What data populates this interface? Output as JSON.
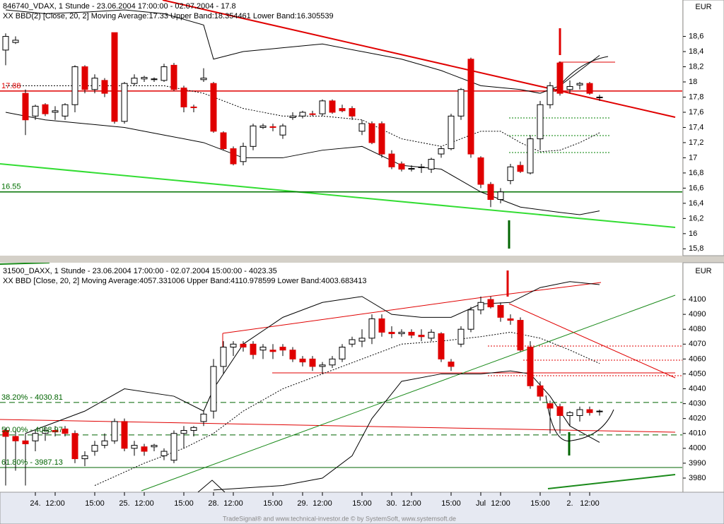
{
  "chart_data": [
    {
      "type": "candlestick",
      "title": "846740_VDAX, 1 Stunde - 23.06.2004 17:00:00 - 02.07.2004 - 17.8",
      "subtitle": "XX BBD(2) [Close, 20, 2] Moving Average:17.33 Upper Band:18.354461 Lower Band:16.305539",
      "axis_unit": "EUR",
      "open": [
        18.42,
        18.52,
        17.85,
        17.55,
        17.7,
        17.6,
        17.55,
        17.7,
        18.2,
        17.9,
        18.02,
        18.65,
        17.48,
        17.98,
        18.04,
        18.03,
        18.02,
        18.22,
        17.92,
        17.67,
        18.03,
        17.98,
        17.33,
        17.12,
        16.95,
        17.15,
        17.4,
        17.41,
        17.3,
        17.53,
        17.55,
        17.58,
        17.58,
        17.75,
        17.65,
        17.65,
        17.35,
        17.45,
        17.45,
        17.05,
        16.92,
        16.85,
        16.87,
        16.85,
        17.05,
        17.12,
        17.55,
        18.3,
        17.0,
        16.65,
        16.45,
        16.7,
        16.9,
        16.8,
        17.25,
        17.7,
        18.25,
        17.9,
        17.96,
        17.98,
        17.8
      ],
      "high": [
        18.64,
        18.6,
        17.9,
        17.7,
        17.72,
        17.68,
        17.72,
        18.22,
        18.22,
        18.1,
        18.05,
        18.65,
        18.0,
        18.1,
        18.08,
        18.06,
        18.24,
        18.25,
        17.95,
        17.7,
        18.18,
        18.0,
        17.35,
        17.15,
        17.2,
        17.45,
        17.45,
        17.45,
        17.45,
        17.6,
        17.62,
        17.62,
        17.77,
        17.77,
        17.7,
        17.68,
        17.5,
        17.48,
        17.48,
        17.1,
        16.95,
        16.9,
        16.92,
        17.0,
        17.15,
        17.58,
        17.92,
        18.32,
        17.02,
        16.68,
        16.6,
        16.92,
        16.95,
        17.3,
        17.75,
        18.0,
        18.27,
        18.02,
        18.0,
        18.0,
        17.83
      ],
      "low": [
        18.22,
        18.5,
        17.3,
        17.5,
        17.55,
        17.5,
        17.5,
        17.6,
        17.85,
        17.85,
        17.8,
        17.45,
        17.45,
        17.95,
        18.0,
        18.0,
        18.0,
        17.88,
        17.6,
        17.6,
        18.0,
        17.33,
        17.1,
        16.9,
        16.9,
        17.1,
        17.38,
        17.35,
        17.25,
        17.5,
        17.52,
        17.55,
        17.55,
        17.58,
        17.6,
        17.5,
        17.3,
        17.18,
        17.0,
        16.85,
        16.82,
        16.82,
        16.8,
        16.8,
        17.0,
        17.1,
        17.5,
        17.0,
        16.6,
        16.35,
        16.4,
        16.65,
        16.8,
        16.78,
        17.1,
        17.65,
        17.82,
        17.85,
        17.9,
        17.83,
        17.75
      ],
      "close": [
        18.6,
        18.55,
        17.5,
        17.68,
        17.58,
        17.62,
        17.7,
        18.2,
        17.9,
        18.05,
        17.85,
        17.48,
        17.98,
        18.05,
        18.06,
        18.04,
        18.2,
        17.9,
        17.67,
        17.66,
        18.05,
        17.35,
        17.12,
        16.92,
        17.15,
        17.42,
        17.42,
        17.4,
        17.42,
        17.55,
        17.6,
        17.57,
        17.75,
        17.6,
        17.62,
        17.55,
        17.45,
        17.2,
        17.05,
        16.88,
        16.85,
        16.86,
        16.88,
        16.98,
        17.12,
        17.55,
        17.9,
        17.05,
        16.65,
        16.45,
        16.55,
        16.88,
        16.82,
        17.25,
        17.7,
        17.95,
        17.85,
        17.94,
        17.98,
        17.85,
        17.8
      ],
      "up_color": "#ffffff",
      "down_color": "#e00000",
      "series": [
        {
          "color": "#000000",
          "style": "solid",
          "x": [
            0,
            4,
            8,
            12,
            16,
            20,
            21,
            24,
            28,
            32,
            36,
            40,
            44,
            48,
            52,
            54,
            56,
            58,
            60
          ],
          "values": [
            18.95,
            18.9,
            18.92,
            18.95,
            18.9,
            18.75,
            18.3,
            18.4,
            18.45,
            18.5,
            18.4,
            18.3,
            18.15,
            17.95,
            17.9,
            17.85,
            17.95,
            18.15,
            18.35
          ]
        },
        {
          "color": "#000000",
          "style": "dotted",
          "x": [
            0,
            4,
            8,
            12,
            16,
            20,
            24,
            28,
            32,
            36,
            40,
            44,
            48,
            50,
            52,
            54,
            56,
            58,
            60
          ],
          "values": [
            17.95,
            17.95,
            17.95,
            17.95,
            17.95,
            17.85,
            17.65,
            17.55,
            17.55,
            17.5,
            17.25,
            17.15,
            17.35,
            17.35,
            17.2,
            17.08,
            17.1,
            17.2,
            17.33
          ]
        },
        {
          "color": "#000000",
          "style": "solid",
          "x": [
            0,
            4,
            8,
            12,
            16,
            20,
            24,
            28,
            32,
            36,
            40,
            44,
            48,
            50,
            52,
            56,
            58,
            60
          ],
          "values": [
            17.6,
            17.5,
            17.45,
            17.4,
            17.3,
            17.2,
            17.0,
            17.0,
            17.1,
            17.15,
            16.9,
            16.85,
            16.55,
            16.45,
            16.35,
            16.28,
            16.25,
            16.3
          ]
        }
      ],
      "levels": [
        {
          "value": 17.88,
          "color": "#e00000"
        },
        {
          "value": 16.55,
          "color": "#007000"
        }
      ],
      "ylim": [
        15.71,
        19.08
      ],
      "yticks": [
        {
          "value": 18.6,
          "label": "18,6"
        },
        {
          "value": 18.4,
          "label": "18,4"
        },
        {
          "value": 18.2,
          "label": "18,2"
        },
        18,
        {
          "value": 17.8,
          "label": "17,8"
        },
        {
          "value": 17.6,
          "label": "17,6"
        },
        {
          "value": 17.4,
          "label": "17,4"
        },
        {
          "value": 17.2,
          "label": "17,2"
        },
        17,
        {
          "value": 16.8,
          "label": "16,8"
        },
        {
          "value": 16.6,
          "label": "16,6"
        },
        {
          "value": 16.4,
          "label": "16,4"
        },
        {
          "value": 16.2,
          "label": "16,2"
        },
        16,
        {
          "value": 15.8,
          "label": "15,8"
        }
      ]
    },
    {
      "type": "candlestick",
      "title": "31500_DAXX, 1 Stunde - 23.06.2004 17:00:00 - 02.07.2004 15:00:00 - 4023.35",
      "subtitle": "XX BBD [Close, 20, 2] Moving Average:4057.331006 Upper Band:4110.978599 Lower Band:4003.683413",
      "axis_unit": "EUR",
      "categories": [
        null,
        null,
        null,
        "24.",
        null,
        "12:00",
        null,
        null,
        null,
        "15:00",
        null,
        null,
        "25.",
        null,
        "12:00",
        null,
        null,
        null,
        "15:00",
        null,
        null,
        "28.",
        null,
        "12:00",
        null,
        null,
        null,
        "15:00",
        null,
        null,
        "29.",
        null,
        "12:00",
        null,
        null,
        null,
        "15:00",
        null,
        null,
        "30.",
        null,
        "12:00",
        null,
        null,
        null,
        "15:00",
        null,
        null,
        "Jul",
        null,
        "12:00",
        null,
        null,
        null,
        "15:00",
        null,
        null,
        "2.",
        null,
        "12:00",
        null
      ],
      "open": [
        4012,
        4008,
        4005,
        4005,
        4010,
        4012,
        4013,
        4010,
        3993,
        3998,
        4002,
        4005,
        4018,
        4000,
        4001,
        4001,
        3995,
        3992,
        4010,
        4012,
        4018,
        4025,
        4055,
        4068,
        4070,
        4070,
        4066,
        4066,
        4068,
        4066,
        4060,
        4060,
        4055,
        4056,
        4060,
        4070,
        4072,
        4074,
        4087,
        4078,
        4077,
        4078,
        4076,
        4074,
        4077,
        4058,
        4070,
        4080,
        4093,
        4100,
        4096,
        4087,
        4086,
        4068,
        4042,
        4030,
        4028,
        4022,
        4022,
        4026,
        4025
      ],
      "high": [
        4014,
        4012,
        4010,
        4012,
        4014,
        4015,
        4015,
        4012,
        3998,
        4005,
        4010,
        4020,
        4020,
        4005,
        4003,
        4003,
        4000,
        4012,
        4015,
        4015,
        4025,
        4060,
        4072,
        4072,
        4072,
        4072,
        4070,
        4070,
        4070,
        4068,
        4062,
        4062,
        4058,
        4062,
        4070,
        4075,
        4080,
        4090,
        4090,
        4082,
        4080,
        4080,
        4080,
        4080,
        4078,
        4060,
        4082,
        4095,
        4102,
        4102,
        4098,
        4090,
        4088,
        4072,
        4045,
        4032,
        4030,
        4025,
        4028,
        4028,
        4026
      ],
      "low": [
        3975,
        3985,
        3975,
        3998,
        4005,
        4008,
        4008,
        3990,
        3988,
        3995,
        4000,
        4003,
        3998,
        3995,
        3995,
        3998,
        3992,
        3990,
        4000,
        4008,
        4015,
        4020,
        4050,
        4062,
        4065,
        4060,
        4060,
        4060,
        4062,
        4058,
        4055,
        4052,
        4050,
        4054,
        4058,
        4068,
        4068,
        4070,
        4075,
        4074,
        4075,
        4074,
        4072,
        4072,
        4058,
        4052,
        4068,
        4078,
        4090,
        4094,
        4085,
        4083,
        4065,
        4040,
        4032,
        4010,
        4010,
        4015,
        4018,
        4022,
        4022
      ],
      "close": [
        4008,
        4005,
        4003,
        4010,
        4012,
        4011,
        4010,
        3993,
        3995,
        4002,
        4005,
        4018,
        4000,
        4002,
        3998,
        4002,
        3998,
        4010,
        4012,
        4014,
        4023,
        4055,
        4068,
        4070,
        4068,
        4063,
        4068,
        4065,
        4066,
        4060,
        4058,
        4055,
        4056,
        4060,
        4068,
        4073,
        4074,
        4087,
        4078,
        4077,
        4078,
        4076,
        4075,
        4078,
        4060,
        4055,
        4080,
        4093,
        4098,
        4095,
        4088,
        4086,
        4066,
        4042,
        4035,
        4027,
        4022,
        4024,
        4026,
        4024,
        4025
      ],
      "up_color": "#ffffff",
      "down_color": "#e00000",
      "series": [
        {
          "color": "#000000",
          "style": "solid",
          "x": [
            2,
            8,
            12,
            17,
            20,
            21,
            24,
            28,
            32,
            36,
            39,
            42,
            45,
            48,
            51,
            54,
            57,
            60
          ],
          "values": [
            4010,
            4025,
            4040,
            4035,
            4025,
            4040,
            4070,
            4088,
            4098,
            4102,
            4090,
            4088,
            4088,
            4097,
            4098,
            4108,
            4112,
            4110
          ]
        },
        {
          "color": "#000000",
          "style": "dotted",
          "x": [
            9,
            14,
            18,
            21,
            24,
            28,
            32,
            36,
            40,
            44,
            48,
            51,
            54,
            57,
            60
          ],
          "values": [
            3975,
            3990,
            4000,
            4010,
            4025,
            4040,
            4050,
            4060,
            4070,
            4072,
            4075,
            4078,
            4074,
            4066,
            4057
          ]
        },
        {
          "color": "#000000",
          "style": "solid",
          "x": [
            21,
            28,
            32,
            35,
            37,
            40,
            44,
            48,
            51,
            53,
            55,
            57,
            60
          ],
          "values": [
            3972,
            3975,
            3980,
            3995,
            4020,
            4045,
            4050,
            4050,
            4052,
            4050,
            4035,
            4015,
            4004
          ]
        }
      ],
      "levels": [
        {
          "label": "38.20% - 4030.81",
          "value": 4030.81,
          "color": "#006400",
          "dash": true
        },
        {
          "label": "50.00% - 4008.97",
          "value": 4008.97,
          "color": "#006400",
          "dash": true
        },
        {
          "label": "61.80% - 3987.13",
          "value": 3987.13,
          "color": "#006400",
          "dash": false
        }
      ],
      "ylim": [
        3970.5,
        4124.7
      ],
      "yticks": [
        4100,
        4090,
        4080,
        4070,
        4060,
        4050,
        4040,
        4030,
        4020,
        4010,
        4000,
        3990,
        3980
      ]
    }
  ],
  "footer": "TradeSignal® and www.technical-investor.de © by  SystemSoft, www.systemsoft.de"
}
